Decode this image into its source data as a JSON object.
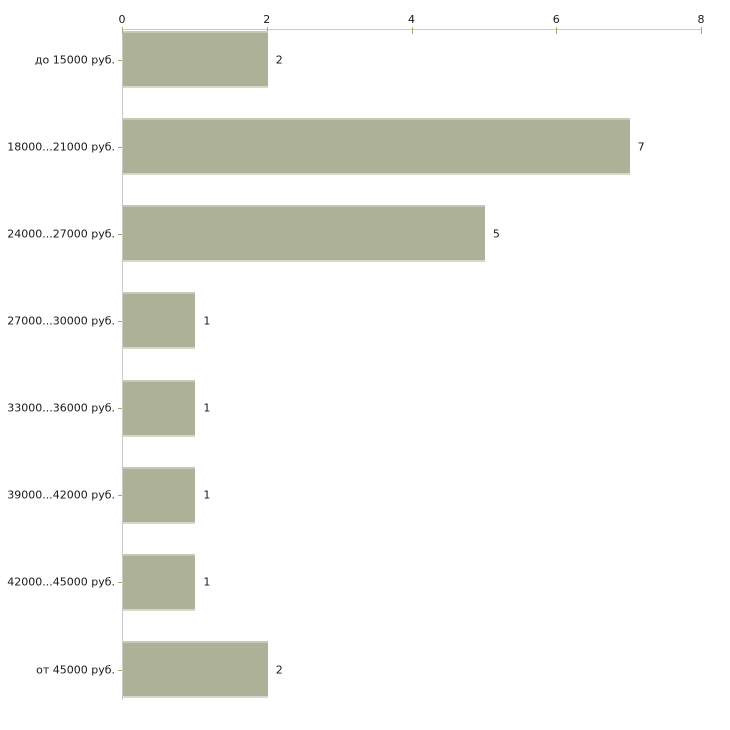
{
  "chart_data": {
    "type": "bar",
    "orientation": "horizontal",
    "title": "",
    "xlabel": "",
    "ylabel": "",
    "categories": [
      "до 15000 руб.",
      "18000...21000 руб.",
      "24000...27000 руб.",
      "27000...30000 руб.",
      "33000...36000 руб.",
      "39000...42000 руб.",
      "42000...45000 руб.",
      "от 45000 руб."
    ],
    "values": [
      2,
      7,
      5,
      1,
      1,
      1,
      1,
      2
    ],
    "data_labels": [
      "2",
      "7",
      "5",
      "1",
      "1",
      "1",
      "1",
      "2"
    ],
    "x_ticks": [
      "0",
      "2",
      "4",
      "6",
      "8"
    ],
    "x_tick_values": [
      0,
      2,
      4,
      6,
      8
    ],
    "xlim": [
      0,
      8
    ],
    "grid": false,
    "legend": false,
    "colors": {
      "bar_fill": "#acb197",
      "bar_edge_top": "#c6c9b7",
      "bar_edge_bottom": "#d6d8cc",
      "axis_line": "#c9c9c9",
      "tick_mark": "#aaaa66",
      "text": "#1a1a1a",
      "background": "#ffffff"
    }
  }
}
